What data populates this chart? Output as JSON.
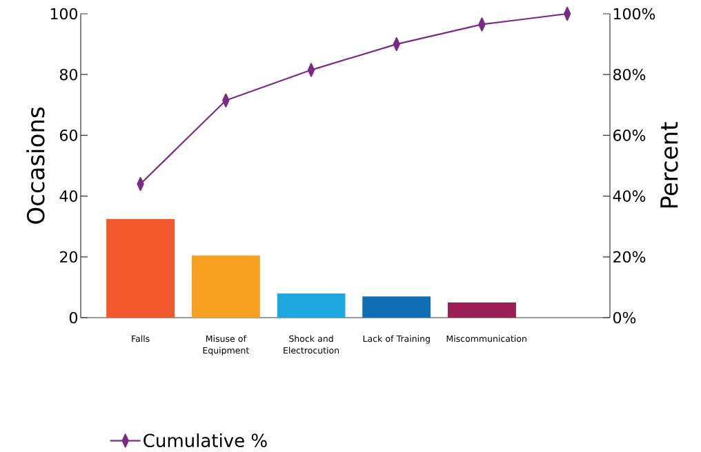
{
  "chart_data": {
    "type": "bar",
    "categories": [
      "Falls",
      "Misuse of Equipment",
      "Shock and Electrocution",
      "Lack of Training",
      "Miscommunication",
      null
    ],
    "ylabel": "Occasions",
    "y2label": "Percent",
    "ylim": [
      0,
      100
    ],
    "yticks": [
      0,
      20,
      40,
      60,
      80,
      100
    ],
    "y2lim": [
      0,
      100
    ],
    "y2ticks": [
      {
        "value": 0,
        "label": "0%"
      },
      {
        "value": 20,
        "label": "20%"
      },
      {
        "value": 40,
        "label": "40%"
      },
      {
        "value": 60,
        "label": "60%"
      },
      {
        "value": 80,
        "label": "80%"
      },
      {
        "value": 100,
        "label": "100%"
      }
    ],
    "legend": "bottom",
    "marker": "diamond",
    "series": [
      {
        "type": "bar",
        "colors": [
          "#f05a2c",
          "#f7a021",
          "#1fa8e0",
          "#106eb5",
          "#9c1f56",
          "#000000"
        ],
        "values": [
          32.5,
          20.5,
          8,
          7,
          5,
          null
        ]
      },
      {
        "type": "line",
        "name": "Cumulative %",
        "color": "#7b2a85",
        "axis": "y2",
        "values": [
          44,
          71.5,
          81.5,
          90,
          96.5,
          100
        ]
      }
    ]
  }
}
